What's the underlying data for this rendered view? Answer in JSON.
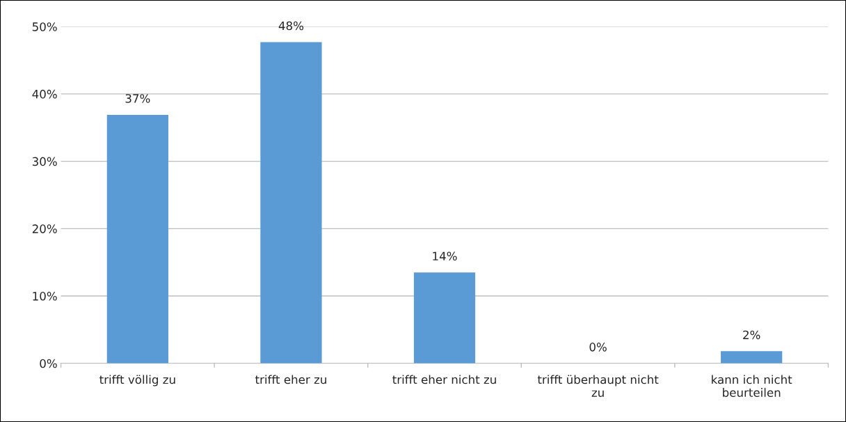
{
  "chart_data": {
    "type": "bar",
    "categories": [
      "trifft völlig zu",
      "trifft eher zu",
      "trifft eher nicht zu",
      "trifft überhaupt nicht\nzu",
      "kann ich nicht\nbeurteilen"
    ],
    "values": [
      36.9,
      47.7,
      13.5,
      0,
      1.8
    ],
    "value_labels": [
      "37%",
      "48%",
      "14%",
      "0%",
      "2%"
    ],
    "color": "#5b9bd5",
    "ylim": [
      0,
      50
    ],
    "yticks": [
      {
        "value": 0,
        "label": "0%"
      },
      {
        "value": 10,
        "label": "10%"
      },
      {
        "value": 20,
        "label": "20%"
      },
      {
        "value": 30,
        "label": "30%"
      },
      {
        "value": 40,
        "label": "40%"
      },
      {
        "value": 50,
        "label": "50%"
      }
    ],
    "grid": "y"
  }
}
